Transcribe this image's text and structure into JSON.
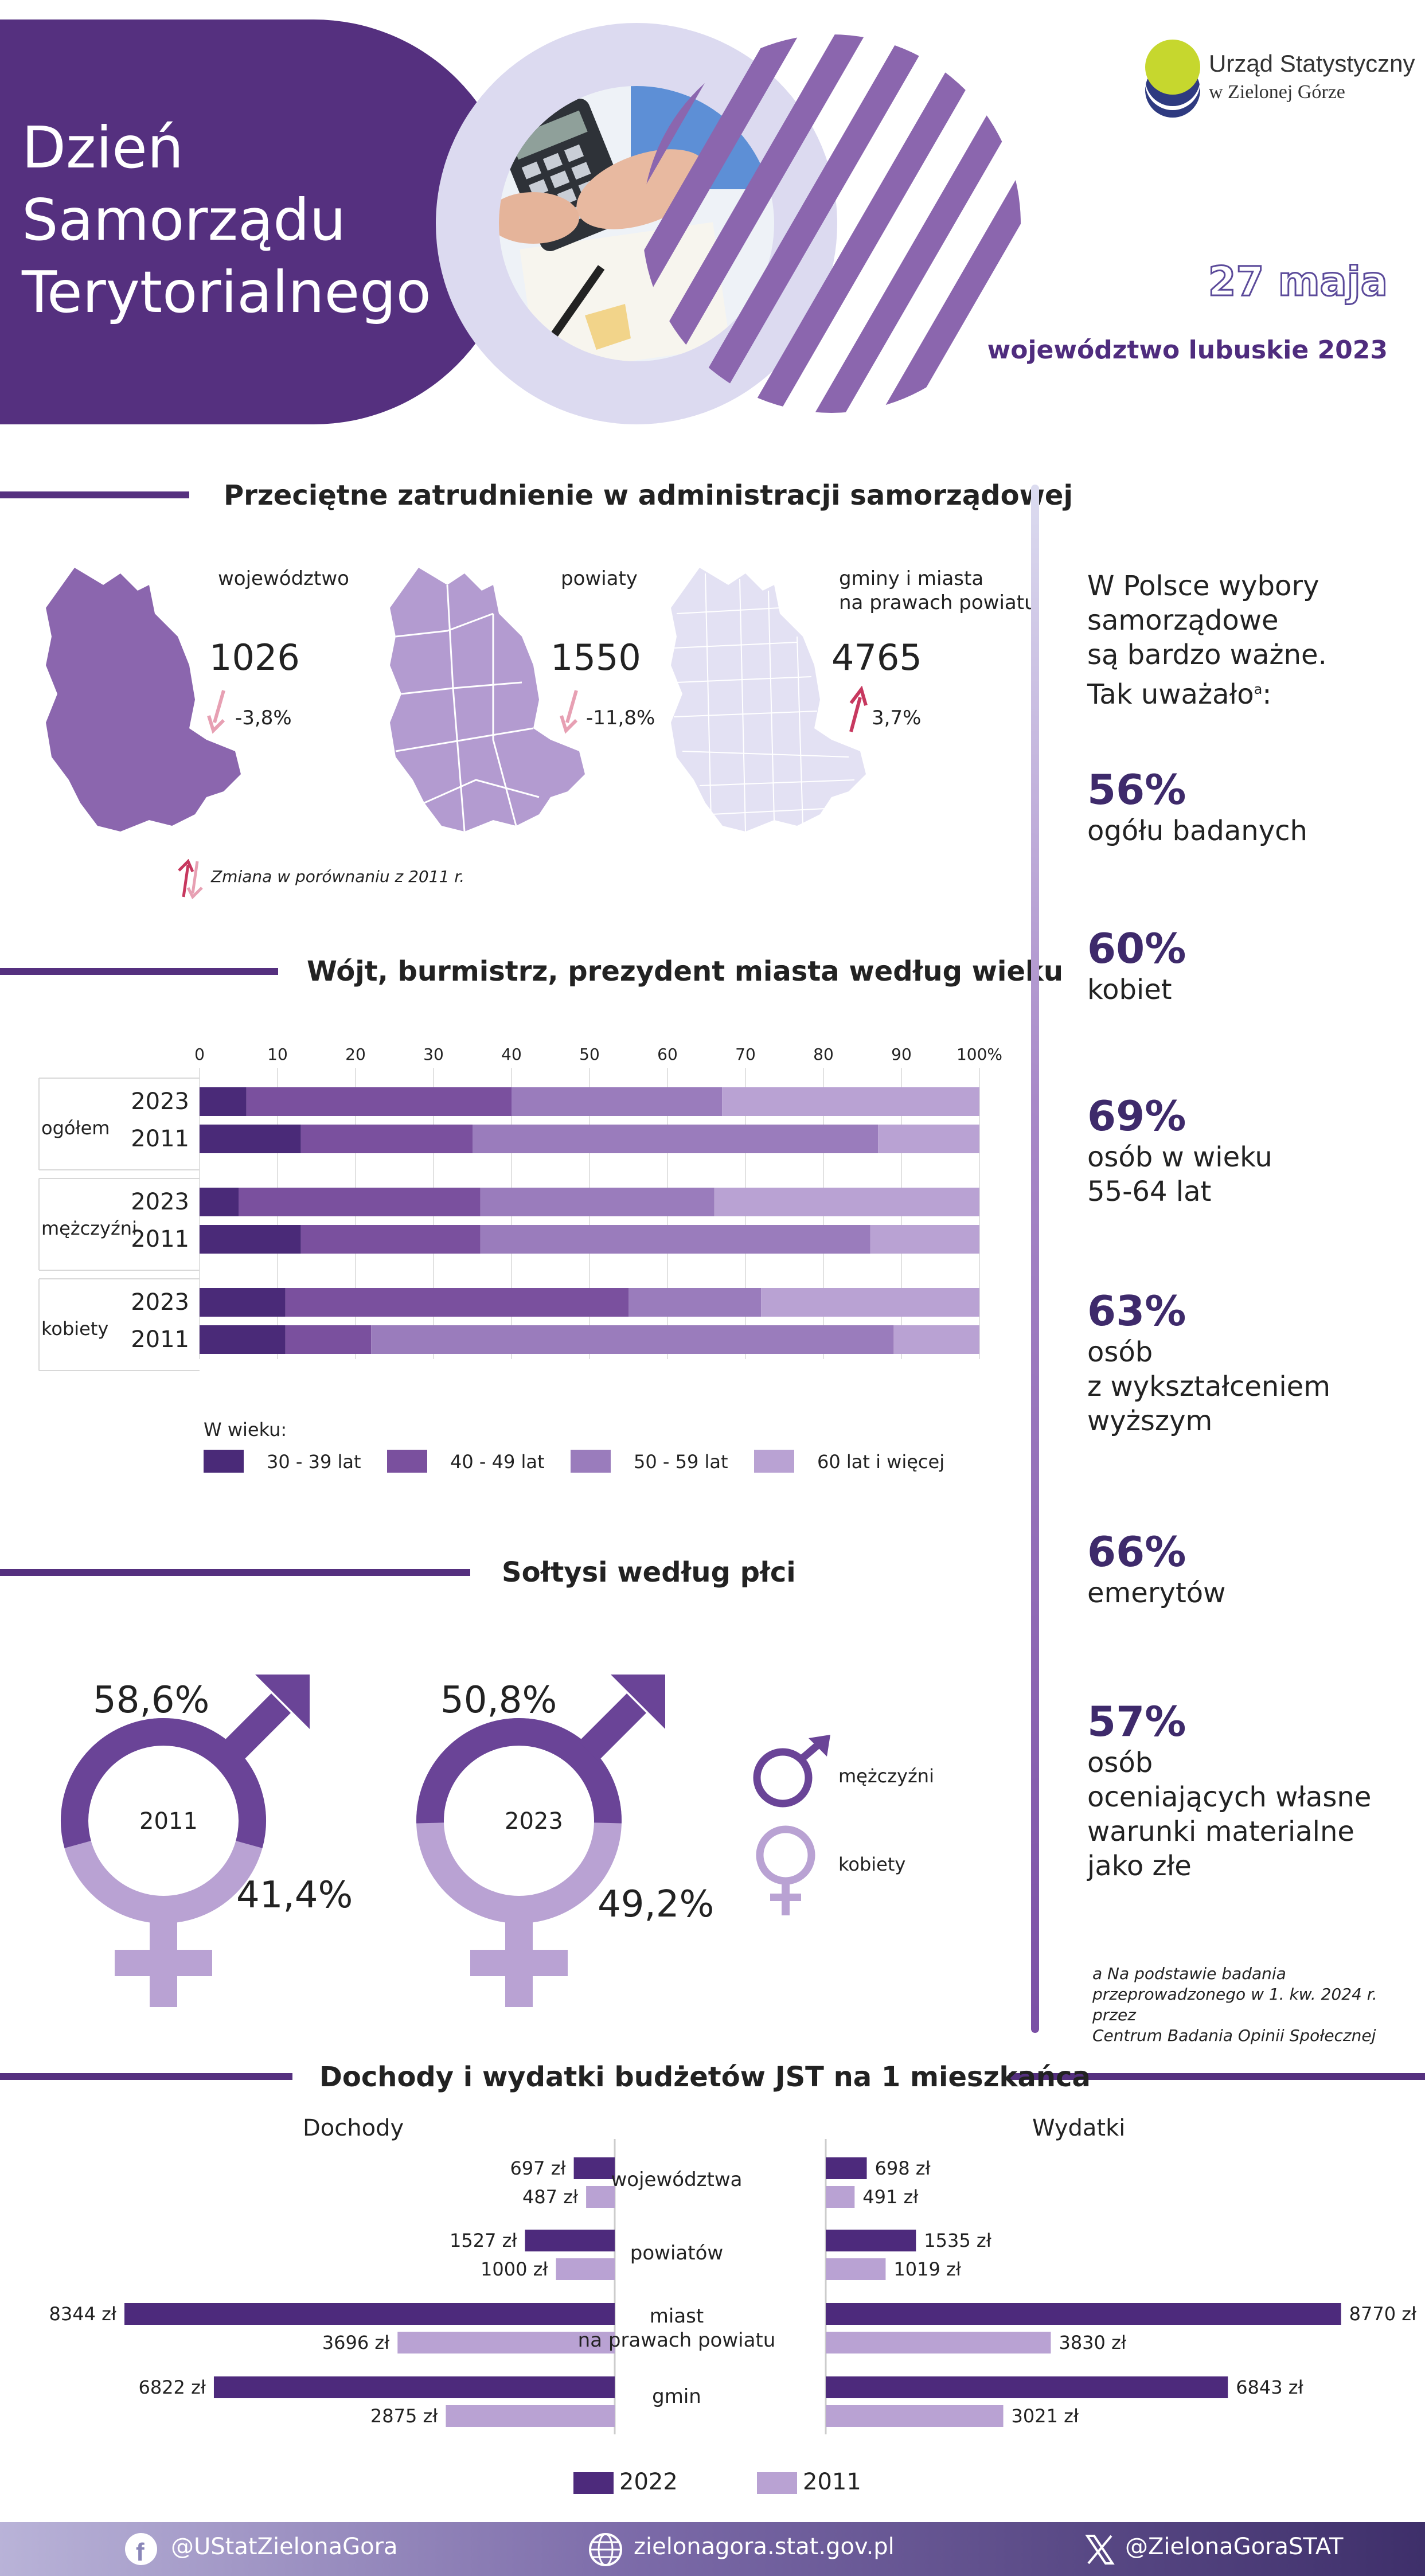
{
  "header": {
    "title_lines": [
      "Dzień",
      "Samorządu",
      "Terytorialnego"
    ],
    "logo_line1": "Urząd Statystyczny",
    "logo_line2": "w Zielonej Górze",
    "date": "27 maja",
    "region": "województwo lubuskie 2023"
  },
  "employment": {
    "title": "Przeciętne zatrudnienie w administracji samorządowej",
    "items": [
      {
        "label": "województwo",
        "value": "1026",
        "change": "-3,8%",
        "direction": "down",
        "color": "#8b66ae"
      },
      {
        "label": "powiaty",
        "value": "1550",
        "change": "-11,8%",
        "direction": "down",
        "color": "#b39bd0"
      },
      {
        "label_lines": [
          "gminy i miasta",
          "na prawach powiatu"
        ],
        "value": "4765",
        "change": "3,7%",
        "direction": "up",
        "color": "#e3e1f3"
      }
    ],
    "note": "Zmiana w porównaniu z  2011 r."
  },
  "age_chart": {
    "title": "Wójt, burmistrz, prezydent miasta według wieku",
    "chart_data": {
      "type": "bar",
      "orientation": "horizontal-stacked-percent",
      "ticks": [
        "0",
        "10",
        "20",
        "30",
        "40",
        "50",
        "60",
        "70",
        "80",
        "90",
        "100%"
      ],
      "xlim": [
        0,
        100
      ],
      "groups": [
        {
          "label": "ogółem",
          "rows": [
            {
              "year": "2023",
              "values": [
                6,
                34,
                27,
                33
              ]
            },
            {
              "year": "2011",
              "values": [
                13,
                22,
                52,
                13
              ]
            }
          ]
        },
        {
          "label": "mężczyźni",
          "rows": [
            {
              "year": "2023",
              "values": [
                5,
                31,
                30,
                34
              ]
            },
            {
              "year": "2011",
              "values": [
                13,
                23,
                50,
                14
              ]
            }
          ]
        },
        {
          "label": "kobiety",
          "rows": [
            {
              "year": "2023",
              "values": [
                11,
                44,
                17,
                28
              ]
            },
            {
              "year": "2011",
              "values": [
                11,
                11,
                67,
                11
              ]
            }
          ]
        }
      ],
      "legend_title": "W wieku:",
      "series": [
        {
          "name": "30 - 39 lat",
          "color": "#4a2a78"
        },
        {
          "name": "40 - 49 lat",
          "color": "#7a509e"
        },
        {
          "name": "50 - 59 lat",
          "color": "#9a7cbc"
        },
        {
          "name": "60 lat i więcej",
          "color": "#b9a2d3"
        }
      ]
    }
  },
  "soltysi": {
    "title": "Sołtysi według płci",
    "charts": [
      {
        "year": "2011",
        "male_pct": "58,6%",
        "female_pct": "41,4%",
        "male": 58.6,
        "female": 41.4
      },
      {
        "year": "2023",
        "male_pct": "50,8%",
        "female_pct": "49,2%",
        "male": 50.8,
        "female": 49.2
      }
    ],
    "legend": [
      {
        "label": "mężczyźni",
        "color": "#6a4497",
        "icon": "male-symbol-icon"
      },
      {
        "label": "kobiety",
        "color": "#b9a2d3",
        "icon": "female-symbol-icon"
      }
    ]
  },
  "survey": {
    "intro_lines": [
      "W Polsce wybory",
      "samorządowe",
      "są bardzo ważne.",
      "Tak uważało"
    ],
    "intro_sup": "a",
    "intro_end": ":",
    "stats": [
      {
        "pct": "56%",
        "lines": [
          "ogółu badanych"
        ]
      },
      {
        "pct": "60%",
        "lines": [
          "kobiet"
        ]
      },
      {
        "pct": "69%",
        "lines": [
          "osób w wieku",
          "55-64 lat"
        ]
      },
      {
        "pct": "63%",
        "lines": [
          "osób",
          "z wykształceniem",
          "wyższym"
        ]
      },
      {
        "pct": "66%",
        "lines": [
          "emerytów"
        ]
      },
      {
        "pct": "57%",
        "lines": [
          "osób",
          "oceniających własne",
          "warunki materialne",
          "jako złe"
        ]
      }
    ],
    "footnote_lines": [
      "a Na podstawie badania",
      "przeprowadzonego w 1. kw. 2024 r. przez",
      "Centrum Badania Opinii Społecznej"
    ]
  },
  "budget": {
    "title": "Dochody i wydatki budżetów JST na 1 mieszkańca",
    "left_head": "Dochody",
    "right_head": "Wydatki",
    "chart_data": {
      "type": "bar",
      "orientation": "horizontal-butterfly",
      "categories": [
        {
          "lines": [
            "województwa"
          ]
        },
        {
          "lines": [
            "powiatów"
          ]
        },
        {
          "lines": [
            "miast",
            "na prawach powiatu"
          ]
        },
        {
          "lines": [
            "gmin"
          ]
        }
      ],
      "series": [
        {
          "name": "2022",
          "color": "#4d2a7c",
          "dochody": [
            697,
            1527,
            8344,
            6822
          ],
          "wydatki": [
            698,
            1535,
            8770,
            6843
          ],
          "dochody_labels": [
            "697 zł",
            "1527 zł",
            "8344 zł",
            "6822 zł"
          ],
          "wydatki_labels": [
            "698 zł",
            "1535 zł",
            "8770 zł",
            "6843 zł"
          ]
        },
        {
          "name": "2011",
          "color": "#b9a2d3",
          "dochody": [
            487,
            1000,
            3696,
            2875
          ],
          "wydatki": [
            491,
            1019,
            3830,
            3021
          ],
          "dochody_labels": [
            "487 zł",
            "1000 zł",
            "3696 zł",
            "2875 zł"
          ],
          "wydatki_labels": [
            "491 zł",
            "1019 zł",
            "3830 zł",
            "3021 zł"
          ]
        }
      ]
    }
  },
  "footer": {
    "facebook": "@UStatZielonaGora",
    "website": "zielonagora.stat.gov.pl",
    "x": "@ZielonaGoraSTAT"
  }
}
